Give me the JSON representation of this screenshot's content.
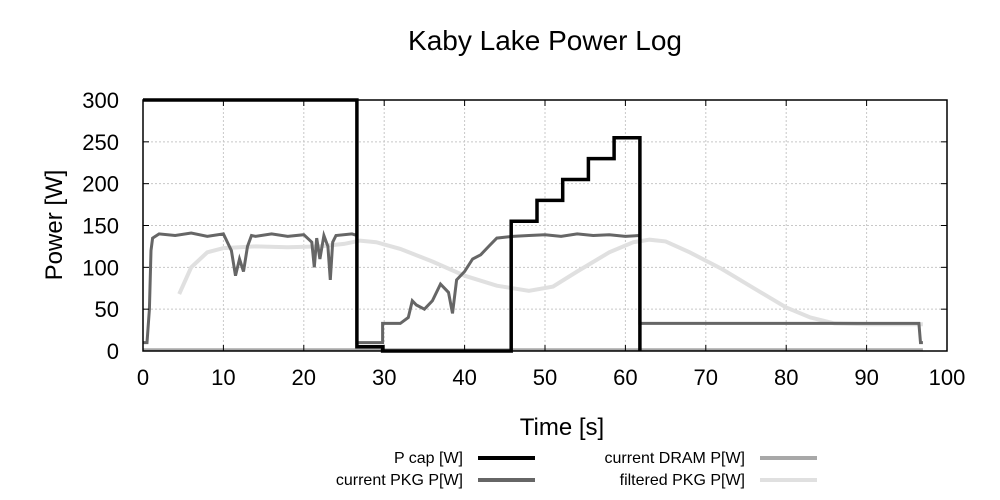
{
  "chart_data": {
    "type": "line",
    "title": "Kaby Lake Power Log",
    "xlabel": "Time [s]",
    "ylabel": "Power [W]",
    "xlim": [
      0,
      100
    ],
    "ylim": [
      0,
      300
    ],
    "xticks": [
      0,
      10,
      20,
      30,
      40,
      50,
      60,
      70,
      80,
      90,
      100
    ],
    "yticks": [
      0,
      50,
      100,
      150,
      200,
      250,
      300
    ],
    "grid": true,
    "legend_position": "bottom",
    "series": [
      {
        "name": "P cap [W]",
        "color": "#000000",
        "x": [
          0,
          26.6,
          26.6,
          29.8,
          29.8,
          45.8,
          45.8,
          49.0,
          49.0,
          52.2,
          52.2,
          55.4,
          55.4,
          58.6,
          58.6,
          61.8,
          61.8
        ],
        "y": [
          300,
          300,
          5,
          5,
          0,
          0,
          155,
          155,
          180,
          180,
          205,
          205,
          230,
          230,
          255,
          255,
          0
        ]
      },
      {
        "name": "current PKG P[W]",
        "color": "#666666",
        "x": [
          0,
          0.5,
          0.8,
          1.0,
          1.2,
          2,
          4,
          6,
          8,
          10,
          11,
          11.5,
          12,
          12.5,
          13,
          13.5,
          14,
          16,
          18,
          20,
          21,
          21.3,
          21.6,
          22,
          22.5,
          23,
          23.3,
          23.6,
          24,
          26,
          26.6,
          26.6,
          29.8,
          29.8,
          32,
          33,
          33.5,
          34,
          35,
          36,
          37,
          38,
          38.5,
          39,
          40,
          41,
          42,
          43,
          44,
          46,
          48,
          50,
          52,
          54,
          56,
          58,
          60,
          61.8,
          61.8,
          70,
          80,
          90,
          96.5,
          96.7,
          97
        ],
        "y": [
          10,
          10,
          50,
          120,
          135,
          140,
          138,
          141,
          137,
          140,
          120,
          90,
          110,
          95,
          125,
          138,
          137,
          140,
          137,
          139,
          130,
          100,
          135,
          110,
          138,
          125,
          85,
          130,
          138,
          140,
          138,
          10,
          10,
          33,
          33,
          40,
          60,
          55,
          50,
          60,
          80,
          70,
          45,
          85,
          95,
          110,
          115,
          125,
          135,
          137,
          138,
          139,
          137,
          140,
          138,
          139,
          137,
          138,
          33,
          33,
          33,
          33,
          33,
          10,
          10
        ]
      },
      {
        "name": "current DRAM P[W]",
        "color": "#a8a8a8",
        "x": [
          0,
          97
        ],
        "y": [
          1.5,
          1.5
        ]
      },
      {
        "name": "filtered PKG P[W]",
        "color": "#e0e0e0",
        "x": [
          4.5,
          6,
          8,
          10,
          14,
          18,
          22,
          25,
          27,
          29,
          32,
          36,
          40,
          44,
          48,
          51,
          54,
          58,
          61,
          63,
          65,
          68,
          72,
          76,
          80,
          83,
          86,
          90,
          94,
          97
        ],
        "y": [
          68,
          100,
          118,
          123,
          125,
          124,
          125,
          128,
          132,
          130,
          122,
          107,
          90,
          78,
          72,
          77,
          95,
          118,
          130,
          133,
          131,
          118,
          98,
          75,
          52,
          40,
          33,
          32,
          32,
          32
        ]
      }
    ]
  }
}
